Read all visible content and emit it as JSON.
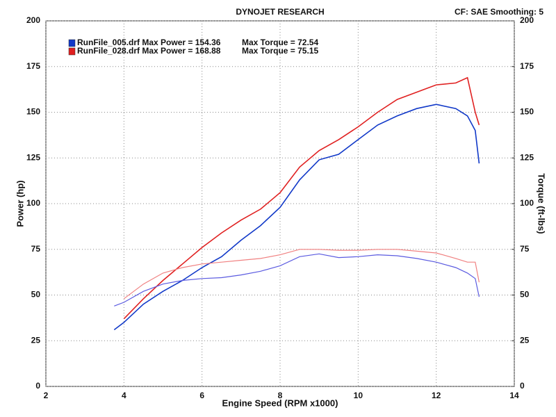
{
  "chart_data": {
    "type": "line",
    "title": "DYNOJET RESEARCH",
    "subtitle": "CF: SAE  Smoothing: 5",
    "x_label": "Engine Speed (RPM x1000)",
    "y_label": "Power (hp)",
    "y2_label": "Torque (ft-lbs)",
    "x": [
      3.75,
      4,
      4.5,
      5,
      5.5,
      6,
      6.5,
      7,
      7.5,
      8,
      8.5,
      9,
      9.5,
      10,
      10.5,
      11,
      11.5,
      12,
      12.5,
      12.8,
      13,
      13.1
    ],
    "series": [
      {
        "name": "RunFile_005.drf Max Power = 154.36",
        "color": "#1038c8",
        "values": [
          31,
          35,
          45,
          52,
          58,
          65,
          71,
          80,
          88,
          98,
          113,
          124,
          127,
          135,
          143,
          148,
          152,
          154.3,
          152,
          148,
          140,
          122
        ]
      },
      {
        "name": "RunFile_028.drf Max Power = 168.88",
        "color": "#e02020",
        "values": [
          null,
          37,
          48,
          58,
          67,
          76,
          84,
          91,
          97,
          106,
          120,
          129,
          135,
          142,
          150,
          157,
          161,
          165,
          166,
          168.9,
          150,
          143
        ]
      },
      {
        "name": "Max Torque = 72.54",
        "color": "#5a5ae0",
        "axis": "y2",
        "values": [
          44,
          46,
          52,
          56,
          58,
          59,
          59.5,
          61,
          63,
          66,
          71,
          72.5,
          70.5,
          71,
          72,
          71.5,
          70,
          68,
          65,
          62,
          59,
          49
        ]
      },
      {
        "name": "Max Torque = 75.15",
        "color": "#f08080",
        "axis": "y2",
        "values": [
          null,
          48,
          56,
          62,
          65,
          67,
          68,
          69,
          70,
          72,
          75,
          75,
          74.5,
          74.5,
          75,
          75,
          74,
          73,
          70,
          68,
          68,
          57
        ]
      }
    ],
    "xlim": [
      2,
      14
    ],
    "xticks": [
      2,
      4,
      6,
      8,
      10,
      12,
      14
    ],
    "ylim": [
      0,
      200
    ],
    "yticks": [
      0,
      25,
      50,
      75,
      100,
      125,
      150,
      175,
      200
    ],
    "y2lim": [
      0,
      200
    ],
    "y2ticks": [
      0,
      25,
      50,
      75,
      100,
      125,
      150,
      175,
      200
    ],
    "grid": true
  }
}
